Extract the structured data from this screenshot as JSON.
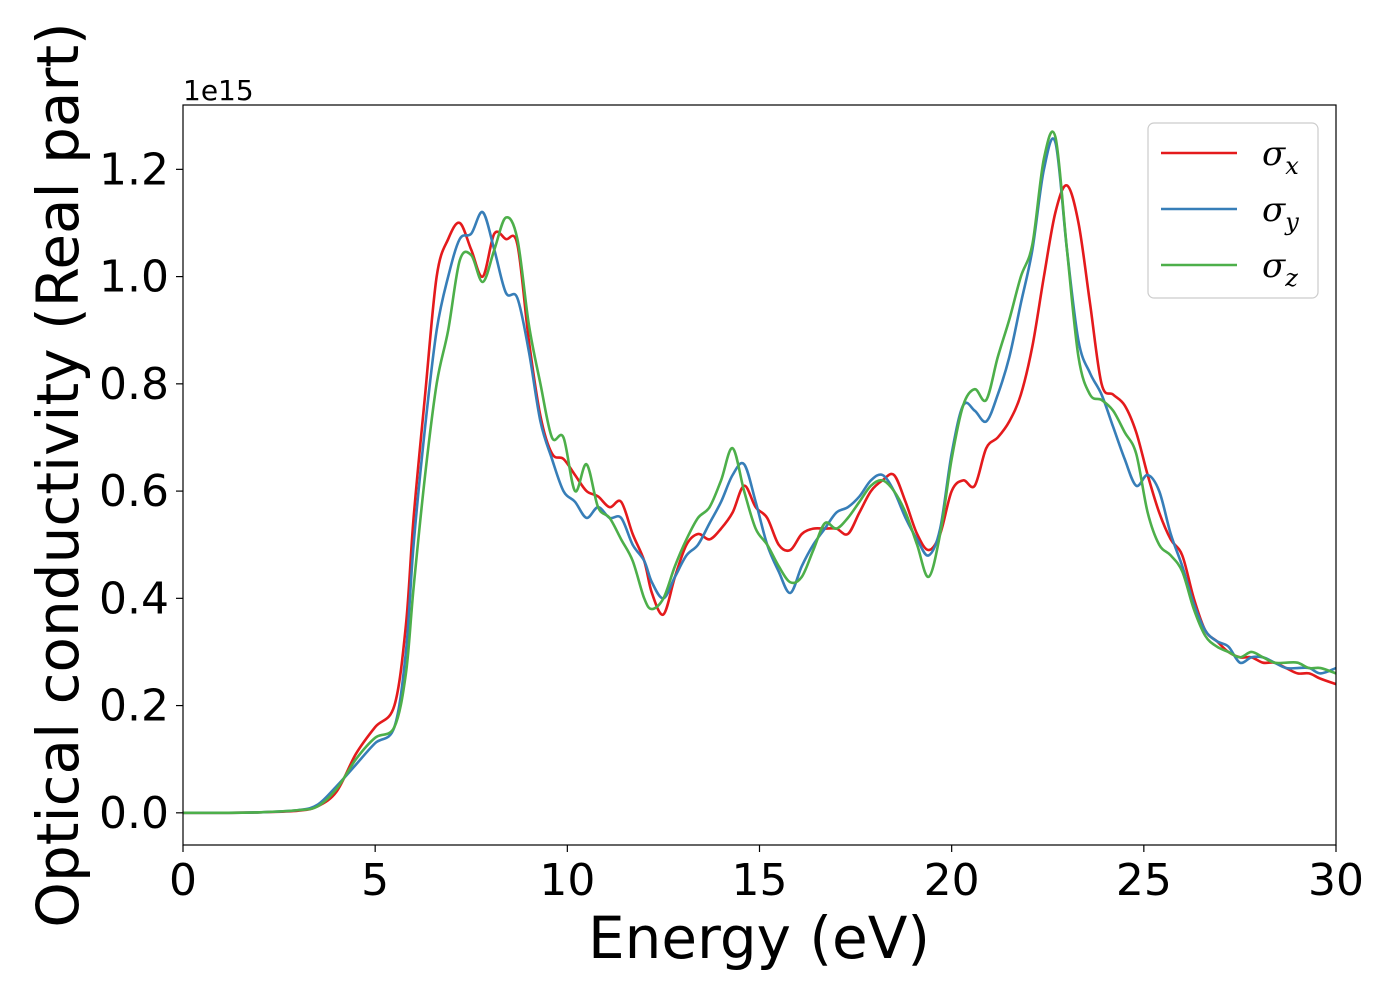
{
  "chart_data": {
    "type": "line",
    "xlabel": "Energy (eV)",
    "ylabel": "Optical conductivity (Real part)",
    "y_offset_label": "1e15",
    "xlim": [
      0,
      30
    ],
    "ylim": [
      -0.06,
      1.32
    ],
    "xticks": [
      0,
      5,
      10,
      15,
      20,
      25,
      30
    ],
    "xtick_labels": [
      "0",
      "5",
      "10",
      "15",
      "20",
      "25",
      "30"
    ],
    "yticks": [
      0.0,
      0.2,
      0.4,
      0.6,
      0.8,
      1.0,
      1.2
    ],
    "ytick_labels": [
      "0.0",
      "0.2",
      "0.4",
      "0.6",
      "0.8",
      "1.0",
      "1.2"
    ],
    "grid": false,
    "legend_position": "top-right",
    "series": [
      {
        "name": "σx",
        "symbol": "σ",
        "subscript": "x",
        "color": "#e41a1c",
        "x": [
          0,
          1,
          2,
          3,
          3.5,
          4,
          4.5,
          5,
          5.5,
          5.8,
          6,
          6.3,
          6.6,
          6.9,
          7.2,
          7.5,
          7.8,
          8.1,
          8.4,
          8.7,
          9,
          9.3,
          9.6,
          9.9,
          10.2,
          10.5,
          10.8,
          11.1,
          11.4,
          11.7,
          12,
          12.2,
          12.5,
          12.8,
          13.1,
          13.4,
          13.7,
          14,
          14.3,
          14.6,
          14.9,
          15.2,
          15.5,
          15.8,
          16.1,
          16.4,
          16.7,
          17,
          17.3,
          17.6,
          17.9,
          18.2,
          18.5,
          18.8,
          19.1,
          19.4,
          19.7,
          20,
          20.3,
          20.6,
          20.9,
          21.2,
          21.5,
          21.8,
          22.1,
          22.4,
          22.7,
          23,
          23.3,
          23.6,
          23.9,
          24.2,
          24.5,
          24.8,
          25.1,
          25.4,
          25.7,
          26,
          26.3,
          26.6,
          26.9,
          27.2,
          27.5,
          27.8,
          28.1,
          28.4,
          28.7,
          29,
          29.3,
          29.6,
          30
        ],
        "y": [
          0.0,
          0.0,
          0.001,
          0.004,
          0.012,
          0.04,
          0.11,
          0.16,
          0.2,
          0.35,
          0.55,
          0.78,
          1.0,
          1.07,
          1.1,
          1.05,
          1.0,
          1.08,
          1.07,
          1.06,
          0.88,
          0.74,
          0.67,
          0.66,
          0.63,
          0.6,
          0.59,
          0.57,
          0.58,
          0.52,
          0.47,
          0.41,
          0.37,
          0.44,
          0.5,
          0.52,
          0.51,
          0.53,
          0.56,
          0.61,
          0.57,
          0.55,
          0.5,
          0.49,
          0.52,
          0.53,
          0.53,
          0.53,
          0.52,
          0.56,
          0.6,
          0.62,
          0.63,
          0.58,
          0.52,
          0.49,
          0.52,
          0.6,
          0.62,
          0.61,
          0.68,
          0.7,
          0.73,
          0.78,
          0.87,
          1.0,
          1.12,
          1.17,
          1.1,
          0.95,
          0.8,
          0.78,
          0.76,
          0.71,
          0.63,
          0.56,
          0.51,
          0.48,
          0.4,
          0.34,
          0.32,
          0.3,
          0.29,
          0.29,
          0.28,
          0.28,
          0.27,
          0.26,
          0.26,
          0.25,
          0.24
        ]
      },
      {
        "name": "σy",
        "symbol": "σ",
        "subscript": "y",
        "color": "#377eb8",
        "x": [
          0,
          1,
          2,
          3,
          3.5,
          4,
          4.5,
          5,
          5.5,
          5.8,
          6,
          6.3,
          6.6,
          6.9,
          7.2,
          7.5,
          7.8,
          8.1,
          8.4,
          8.7,
          9,
          9.3,
          9.6,
          9.9,
          10.2,
          10.5,
          10.8,
          11.1,
          11.4,
          11.7,
          12,
          12.2,
          12.5,
          12.8,
          13.1,
          13.4,
          13.7,
          14,
          14.3,
          14.6,
          14.9,
          15.2,
          15.5,
          15.8,
          16.1,
          16.4,
          16.7,
          17,
          17.3,
          17.6,
          17.9,
          18.2,
          18.5,
          18.8,
          19.1,
          19.4,
          19.7,
          20,
          20.3,
          20.6,
          20.9,
          21.2,
          21.5,
          21.8,
          22.1,
          22.4,
          22.7,
          23,
          23.3,
          23.6,
          23.9,
          24.2,
          24.5,
          24.8,
          25.1,
          25.4,
          25.7,
          26,
          26.3,
          26.6,
          26.9,
          27.2,
          27.5,
          27.8,
          28.1,
          28.4,
          28.7,
          29,
          29.3,
          29.6,
          30
        ],
        "y": [
          0.0,
          0.0,
          0.001,
          0.005,
          0.015,
          0.05,
          0.09,
          0.13,
          0.16,
          0.3,
          0.5,
          0.72,
          0.9,
          1.0,
          1.07,
          1.08,
          1.12,
          1.05,
          0.97,
          0.96,
          0.86,
          0.73,
          0.66,
          0.6,
          0.58,
          0.55,
          0.57,
          0.55,
          0.55,
          0.5,
          0.47,
          0.43,
          0.4,
          0.44,
          0.48,
          0.5,
          0.54,
          0.58,
          0.63,
          0.65,
          0.58,
          0.5,
          0.45,
          0.41,
          0.46,
          0.5,
          0.53,
          0.56,
          0.57,
          0.59,
          0.62,
          0.63,
          0.6,
          0.55,
          0.51,
          0.48,
          0.53,
          0.67,
          0.76,
          0.75,
          0.73,
          0.78,
          0.85,
          0.95,
          1.05,
          1.2,
          1.25,
          1.05,
          0.88,
          0.82,
          0.78,
          0.72,
          0.66,
          0.61,
          0.63,
          0.6,
          0.52,
          0.46,
          0.39,
          0.34,
          0.32,
          0.31,
          0.28,
          0.29,
          0.29,
          0.28,
          0.27,
          0.27,
          0.27,
          0.26,
          0.27
        ]
      },
      {
        "name": "σz",
        "symbol": "σ",
        "subscript": "z",
        "color": "#4daf4a",
        "x": [
          0,
          1,
          2,
          3,
          3.5,
          4,
          4.5,
          5,
          5.5,
          5.8,
          6,
          6.3,
          6.6,
          6.9,
          7.2,
          7.5,
          7.8,
          8.1,
          8.4,
          8.7,
          9,
          9.3,
          9.6,
          9.9,
          10.2,
          10.5,
          10.8,
          11.1,
          11.4,
          11.7,
          12,
          12.2,
          12.5,
          12.8,
          13.1,
          13.4,
          13.7,
          14,
          14.3,
          14.6,
          14.9,
          15.2,
          15.5,
          15.8,
          16.1,
          16.4,
          16.7,
          17,
          17.3,
          17.6,
          17.9,
          18.2,
          18.5,
          18.8,
          19.1,
          19.4,
          19.7,
          20,
          20.3,
          20.6,
          20.9,
          21.2,
          21.5,
          21.8,
          22.1,
          22.4,
          22.7,
          23,
          23.3,
          23.6,
          23.9,
          24.2,
          24.5,
          24.8,
          25.1,
          25.4,
          25.7,
          26,
          26.3,
          26.6,
          26.9,
          27.2,
          27.5,
          27.8,
          28.1,
          28.4,
          28.7,
          29,
          29.3,
          29.6,
          30
        ],
        "y": [
          0.0,
          0.0,
          0.001,
          0.005,
          0.012,
          0.045,
          0.1,
          0.14,
          0.16,
          0.26,
          0.42,
          0.63,
          0.8,
          0.9,
          1.03,
          1.04,
          0.99,
          1.05,
          1.11,
          1.07,
          0.91,
          0.8,
          0.7,
          0.7,
          0.6,
          0.65,
          0.57,
          0.55,
          0.51,
          0.47,
          0.4,
          0.38,
          0.4,
          0.46,
          0.51,
          0.55,
          0.57,
          0.62,
          0.68,
          0.6,
          0.53,
          0.5,
          0.46,
          0.43,
          0.44,
          0.49,
          0.54,
          0.53,
          0.55,
          0.58,
          0.61,
          0.62,
          0.6,
          0.56,
          0.5,
          0.44,
          0.52,
          0.66,
          0.76,
          0.79,
          0.77,
          0.85,
          0.92,
          1.0,
          1.06,
          1.22,
          1.26,
          1.05,
          0.85,
          0.78,
          0.77,
          0.75,
          0.71,
          0.67,
          0.56,
          0.5,
          0.48,
          0.45,
          0.38,
          0.33,
          0.31,
          0.3,
          0.29,
          0.3,
          0.29,
          0.28,
          0.28,
          0.28,
          0.27,
          0.27,
          0.26
        ]
      }
    ]
  }
}
